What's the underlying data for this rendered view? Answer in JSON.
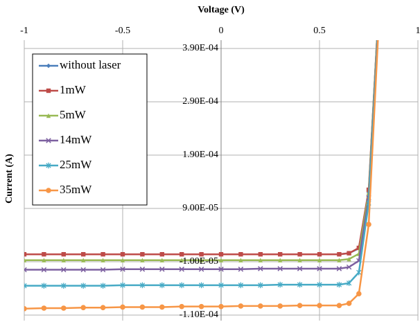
{
  "chart_data": {
    "type": "line",
    "x_label": "Voltage (V)",
    "y_label": "Current (A)",
    "x": [
      -1,
      -0.9,
      -0.8,
      -0.7,
      -0.6,
      -0.5,
      -0.4,
      -0.3,
      -0.2,
      -0.1,
      0,
      0.1,
      0.2,
      0.3,
      0.4,
      0.5,
      0.6,
      0.65,
      0.7,
      0.75,
      0.8
    ],
    "xlim": [
      -1,
      1
    ],
    "xticks": [
      -1,
      -0.5,
      0,
      0.5,
      1
    ],
    "ylim": [
      -0.00011,
      0.00039
    ],
    "yticks": [
      {
        "value": -0.00011,
        "label": "-1.10E-04"
      },
      {
        "value": -1e-05,
        "label": "-1.00E-05"
      },
      {
        "value": 9e-05,
        "label": "9.00E-05"
      },
      {
        "value": 0.00019,
        "label": "1.90E-04"
      },
      {
        "value": 0.00029,
        "label": "2.90E-04"
      },
      {
        "value": 0.00039,
        "label": "3.90E-04"
      }
    ],
    "grid": true,
    "legend": "top-left",
    "series": [
      {
        "name": "without laser",
        "color": "#4a7ebb",
        "marker": "diamond",
        "values": [
          4e-06,
          4e-06,
          4e-06,
          4e-06,
          4e-06,
          4e-06,
          4e-06,
          4e-06,
          4e-06,
          4e-06,
          4e-06,
          4e-06,
          4e-06,
          4e-06,
          4e-06,
          4e-06,
          4e-06,
          6e-06,
          1.5e-05,
          0.00012,
          0.00046
        ]
      },
      {
        "name": "1mW",
        "color": "#be4b48",
        "marker": "square",
        "values": [
          4e-06,
          4e-06,
          4e-06,
          4e-06,
          4e-06,
          4e-06,
          4e-06,
          4e-06,
          4e-06,
          4e-06,
          4e-06,
          4e-06,
          4e-06,
          4e-06,
          4e-06,
          4e-06,
          4e-06,
          6e-06,
          1.6e-05,
          0.000125,
          0.00046
        ]
      },
      {
        "name": "5mW",
        "color": "#98b954",
        "marker": "triangle",
        "values": [
          -7e-06,
          -7e-06,
          -7e-06,
          -7e-06,
          -7e-06,
          -7e-06,
          -7e-06,
          -7e-06,
          -7e-06,
          -7e-06,
          -7e-06,
          -7e-06,
          -7e-06,
          -7e-06,
          -7e-06,
          -7e-06,
          -7e-06,
          -5e-06,
          5e-06,
          0.00012,
          0.00046
        ]
      },
      {
        "name": "14mW",
        "color": "#7d60a0",
        "marker": "x",
        "values": [
          -2.5e-05,
          -2.5e-05,
          -2.5e-05,
          -2.5e-05,
          -2.5e-05,
          -2.4e-05,
          -2.4e-05,
          -2.4e-05,
          -2.4e-05,
          -2.4e-05,
          -2.4e-05,
          -2.4e-05,
          -2.3e-05,
          -2.3e-05,
          -2.3e-05,
          -2.3e-05,
          -2.3e-05,
          -2e-05,
          -8e-06,
          0.00011,
          0.00045
        ]
      },
      {
        "name": "25mW",
        "color": "#46aac5",
        "marker": "star",
        "values": [
          -5.5e-05,
          -5.5e-05,
          -5.5e-05,
          -5.5e-05,
          -5.5e-05,
          -5.4e-05,
          -5.4e-05,
          -5.4e-05,
          -5.4e-05,
          -5.4e-05,
          -5.4e-05,
          -5.4e-05,
          -5.4e-05,
          -5.3e-05,
          -5.3e-05,
          -5.3e-05,
          -5.3e-05,
          -5e-05,
          -3e-05,
          0.0001,
          0.00044
        ]
      },
      {
        "name": "35mW",
        "color": "#f79646",
        "marker": "circle",
        "values": [
          -9.8e-05,
          -9.7e-05,
          -9.7e-05,
          -9.6e-05,
          -9.6e-05,
          -9.5e-05,
          -9.5e-05,
          -9.5e-05,
          -9.4e-05,
          -9.4e-05,
          -9.4e-05,
          -9.3e-05,
          -9.3e-05,
          -9.3e-05,
          -9.2e-05,
          -9.2e-05,
          -9.2e-05,
          -8.8e-05,
          -7e-05,
          6e-05,
          0.00043
        ]
      }
    ]
  }
}
